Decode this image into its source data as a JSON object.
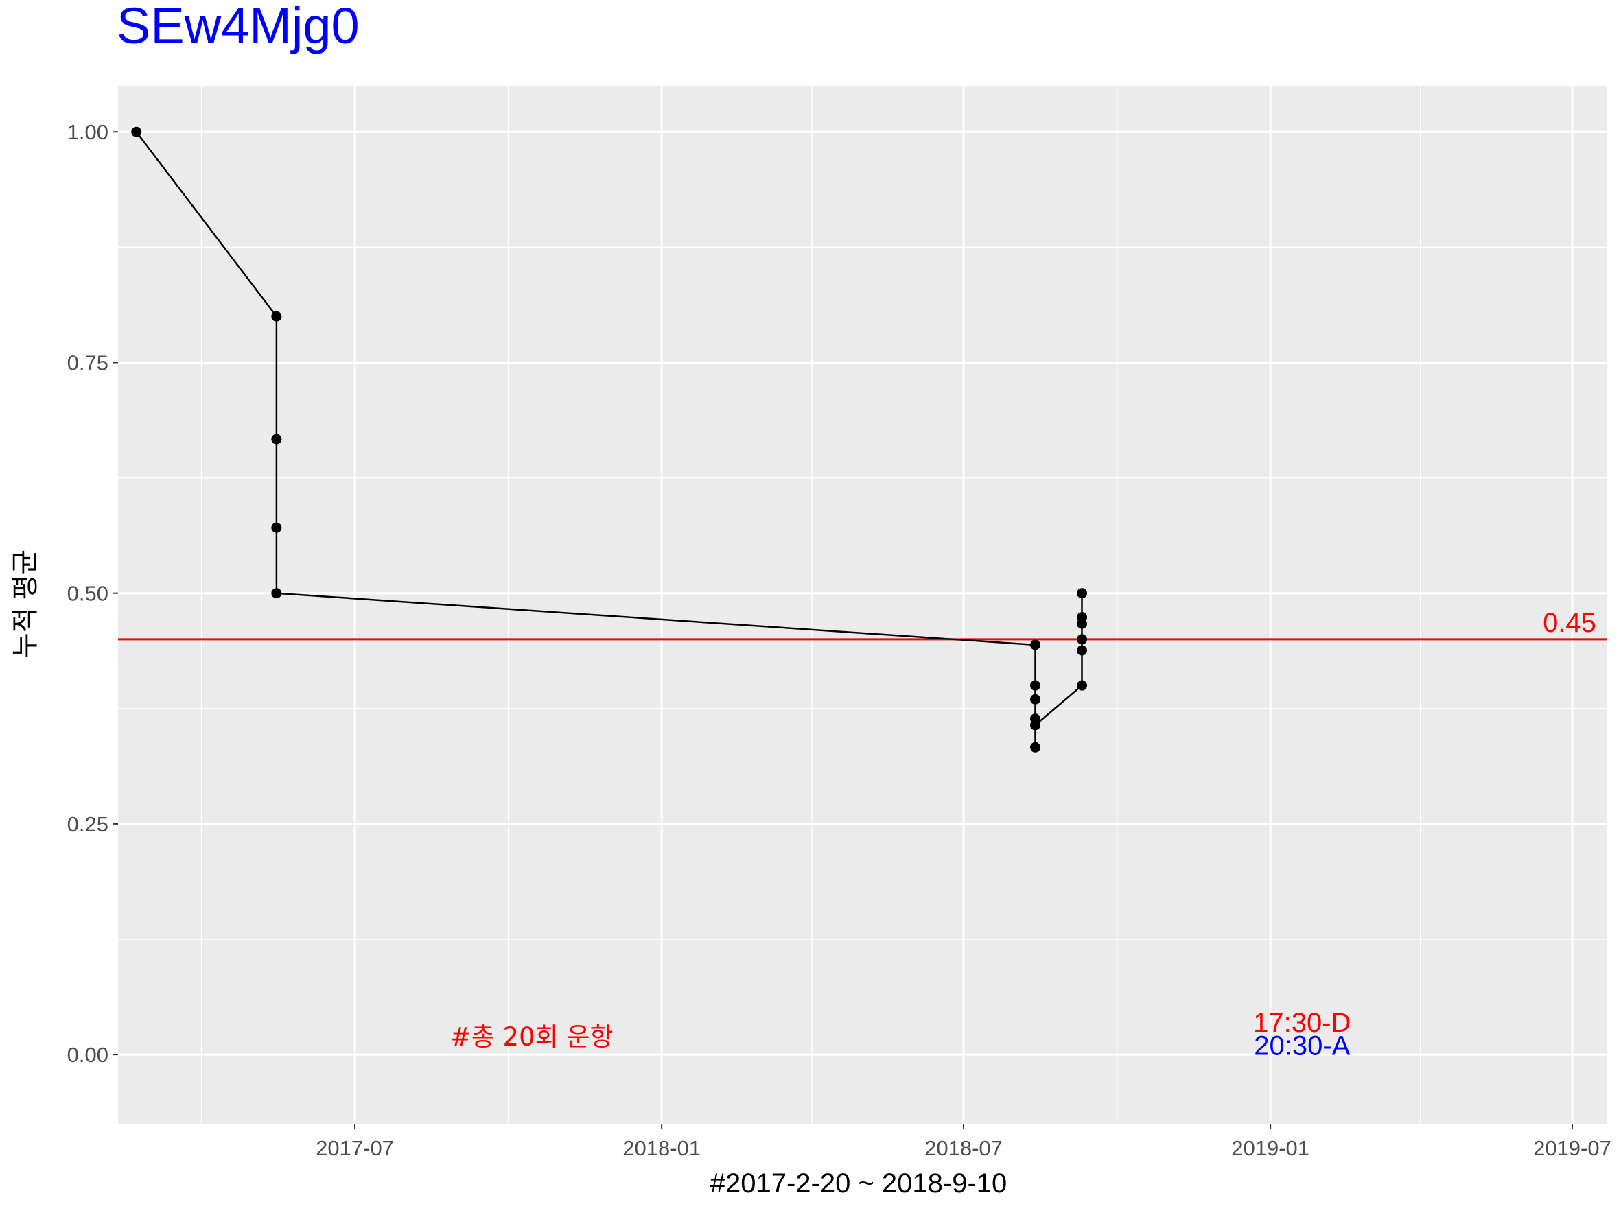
{
  "chart_data": {
    "type": "line",
    "title": "SEw4Mjg0",
    "title_color": "#0000FF",
    "xlabel": "#2017-2-20 ~ 2018-9-10",
    "ylabel": "누적 평균",
    "x_axis_type": "date",
    "xlim": [
      "2017-02-09",
      "2019-07-22"
    ],
    "ylim": [
      -0.075,
      1.05
    ],
    "x_ticks": [
      "2017-07-01",
      "2018-01-01",
      "2018-07-01",
      "2019-01-01",
      "2019-07-01"
    ],
    "x_tick_labels": [
      "2017-07",
      "2018-01",
      "2018-07",
      "2019-01",
      "2019-07"
    ],
    "y_ticks": [
      0.0,
      0.25,
      0.5,
      0.75,
      1.0
    ],
    "y_tick_labels": [
      "0.00",
      "0.25",
      "0.50",
      "0.75",
      "1.00"
    ],
    "grid": true,
    "panel_background": "#EBEBEB",
    "series": [
      {
        "color": "#000000",
        "points": [
          {
            "x": "2017-02-20",
            "y": 1.0
          },
          {
            "x": "2017-05-15",
            "y": 0.8
          },
          {
            "x": "2017-05-15",
            "y": 0.667
          },
          {
            "x": "2017-05-15",
            "y": 0.571
          },
          {
            "x": "2017-05-15",
            "y": 0.5
          },
          {
            "x": "2018-08-13",
            "y": 0.444
          },
          {
            "x": "2018-08-13",
            "y": 0.4
          },
          {
            "x": "2018-08-13",
            "y": 0.385
          },
          {
            "x": "2018-08-13",
            "y": 0.364
          },
          {
            "x": "2018-08-13",
            "y": 0.333
          },
          {
            "x": "2018-08-13",
            "y": 0.357
          },
          {
            "x": "2018-09-10",
            "y": 0.4
          },
          {
            "x": "2018-09-10",
            "y": 0.438
          },
          {
            "x": "2018-09-10",
            "y": 0.45
          },
          {
            "x": "2018-09-10",
            "y": 0.467
          },
          {
            "x": "2018-09-10",
            "y": 0.474
          },
          {
            "x": "2018-09-10",
            "y": 0.5
          }
        ]
      }
    ],
    "reference_line": {
      "y": 0.45,
      "label": "0.45",
      "color": "#FF0000"
    },
    "annotations": [
      {
        "text": "#총 20회 운항",
        "x": "2017-10-15",
        "y": 0.02,
        "color": "#FF0000"
      },
      {
        "text": "17:30-D",
        "x": "2019-01-20",
        "y": 0.035,
        "color": "#FF0000"
      },
      {
        "text": "20:30-A",
        "x": "2019-01-20",
        "y": 0.01,
        "color": "#0000FF"
      }
    ]
  }
}
